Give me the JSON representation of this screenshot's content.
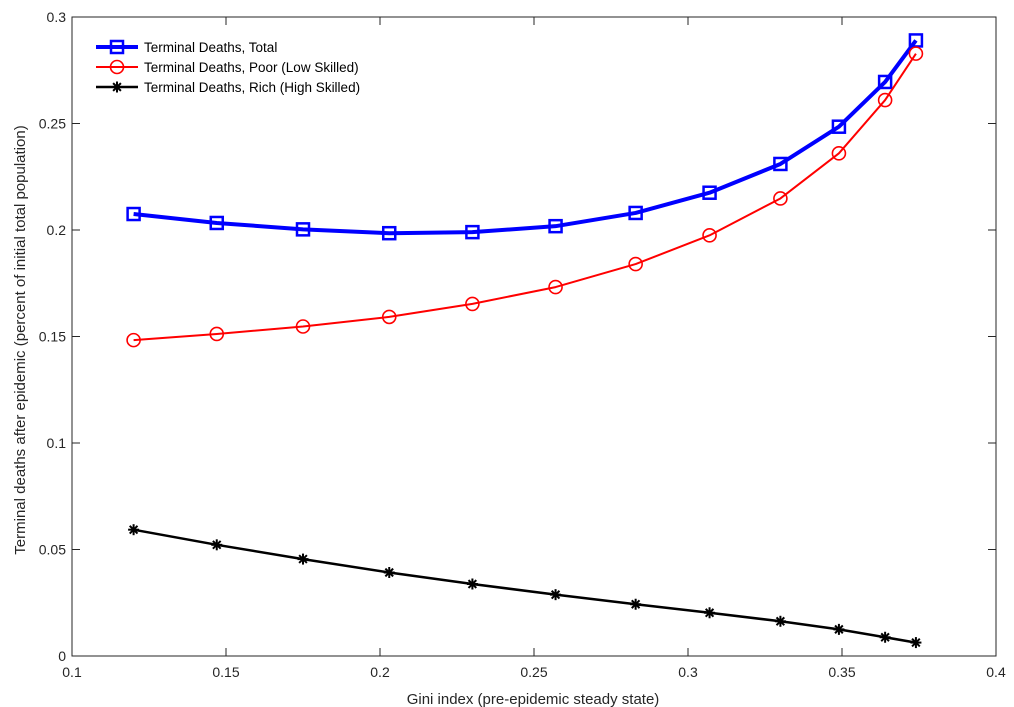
{
  "chart_data": {
    "type": "line",
    "title": "",
    "xlabel": "Gini index (pre-epidemic steady state)",
    "ylabel": "Terminal deaths after epidemic (percent of initial total population)",
    "xlim": [
      0.1,
      0.4
    ],
    "ylim": [
      0,
      0.3
    ],
    "xticks": [
      "0.1",
      "0.15",
      "0.2",
      "0.25",
      "0.3",
      "0.35",
      "0.4"
    ],
    "yticks": [
      "0",
      "0.05",
      "0.1",
      "0.15",
      "0.2",
      "0.25",
      "0.3"
    ],
    "grid": false,
    "legend_position": "top-left",
    "x": [
      0.12,
      0.147,
      0.175,
      0.203,
      0.23,
      0.257,
      0.283,
      0.307,
      0.33,
      0.349,
      0.364,
      0.374
    ],
    "series": [
      {
        "name": "Terminal Deaths, Total",
        "color": "#0000FF",
        "marker": "square",
        "values": [
          0.2075,
          0.2033,
          0.2003,
          0.1985,
          0.199,
          0.2018,
          0.208,
          0.2175,
          0.231,
          0.2485,
          0.2695,
          0.289
        ]
      },
      {
        "name": "Terminal Deaths, Poor (Low Skilled)",
        "color": "#FF0000",
        "marker": "circle",
        "values": [
          0.1483,
          0.1512,
          0.1547,
          0.1592,
          0.1653,
          0.1732,
          0.184,
          0.1975,
          0.2148,
          0.236,
          0.261,
          0.2828
        ]
      },
      {
        "name": "Terminal Deaths, Rich (High Skilled)",
        "color": "#000000",
        "marker": "asterisk",
        "values": [
          0.0593,
          0.0522,
          0.0455,
          0.0392,
          0.0338,
          0.0288,
          0.0243,
          0.0203,
          0.0163,
          0.0125,
          0.0088,
          0.0063
        ]
      }
    ]
  }
}
